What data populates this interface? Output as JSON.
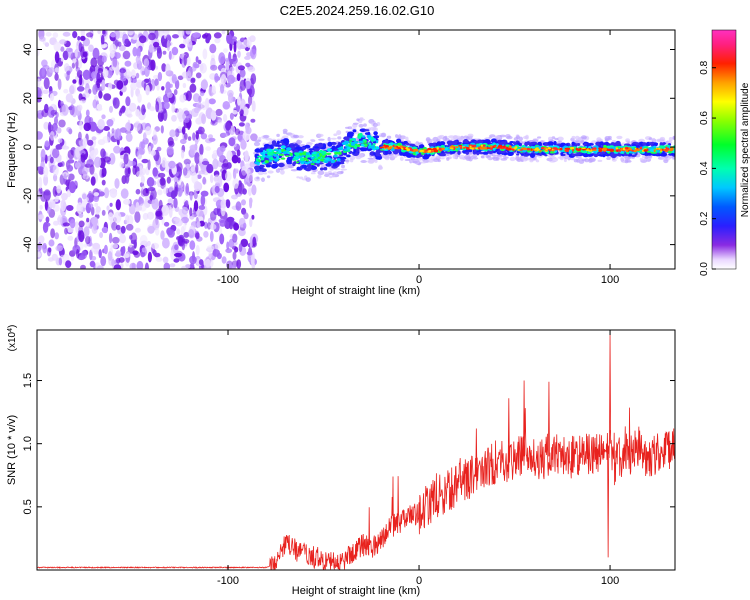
{
  "figure": {
    "title": "C2E5.2024.259.16.02.G10"
  },
  "chart_data": [
    {
      "type": "heatmap",
      "xlabel": "Height of straight line (km)",
      "ylabel": "Frequency (Hz)",
      "xlim": [
        -200,
        134
      ],
      "ylim": [
        -50,
        48
      ],
      "xticks": [
        {
          "value": -100,
          "label": "-100"
        },
        {
          "value": 0,
          "label": "0"
        },
        {
          "value": 100,
          "label": "100"
        }
      ],
      "yticks": [
        {
          "value": -40,
          "label": "-40"
        },
        {
          "value": -20,
          "label": "-20"
        },
        {
          "value": 0,
          "label": "0"
        },
        {
          "value": 20,
          "label": "20"
        },
        {
          "value": 40,
          "label": "40"
        }
      ],
      "signal_trace": {
        "x": [
          -86,
          -80,
          -70,
          -60,
          -50,
          -42,
          -36,
          -30,
          -25,
          -20,
          -10,
          0,
          10,
          20,
          40,
          60,
          80,
          100,
          120,
          134
        ],
        "frequency": [
          -6,
          -4,
          -2,
          -5,
          -4,
          -3,
          1,
          3,
          2,
          0,
          0,
          -2,
          -1,
          0,
          0,
          -1,
          -1,
          -1,
          -1,
          -1
        ]
      },
      "noise_region_x": [
        -200,
        -86
      ],
      "colorbar": {
        "label": "Normalized spectral amplitude",
        "range": [
          0,
          0.95
        ],
        "ticks": [
          {
            "value": 0.0,
            "label": "0.0"
          },
          {
            "value": 0.2,
            "label": "0.2"
          },
          {
            "value": 0.4,
            "label": "0.4"
          },
          {
            "value": 0.6,
            "label": "0.6"
          },
          {
            "value": 0.8,
            "label": "0.8"
          }
        ]
      }
    },
    {
      "type": "line",
      "xlabel": "Height of straight line (km)",
      "ylabel": "SNR (10 * v/v)",
      "scale_note": "(x10",
      "scale_exp": "4",
      "scale_close": ")",
      "xlim": [
        -200,
        134
      ],
      "ylim": [
        0,
        1.9
      ],
      "xticks": [
        {
          "value": -100,
          "label": "-100"
        },
        {
          "value": 0,
          "label": "0"
        },
        {
          "value": 100,
          "label": "100"
        }
      ],
      "yticks": [
        {
          "value": 0.5,
          "label": "0.5"
        },
        {
          "value": 1.0,
          "label": "1.0"
        },
        {
          "value": 1.5,
          "label": "1.5"
        }
      ],
      "line_color": "#e8221e",
      "series": [
        {
          "x": [
            -200,
            -180,
            -160,
            -140,
            -120,
            -100,
            -90,
            -80,
            -76,
            -72,
            -68,
            -64,
            -60,
            -55,
            -50,
            -45,
            -40,
            -35,
            -30,
            -25,
            -20,
            -15,
            -10,
            -5,
            0,
            5,
            10,
            15,
            20,
            25,
            30,
            35,
            40,
            45,
            50,
            55,
            60,
            65,
            70,
            75,
            80,
            85,
            90,
            95,
            98,
            100,
            102,
            105,
            110,
            115,
            120,
            125,
            130,
            134
          ],
          "values": [
            0.02,
            0.02,
            0.02,
            0.02,
            0.02,
            0.02,
            0.02,
            0.02,
            0.04,
            0.17,
            0.2,
            0.15,
            0.12,
            0.1,
            0.08,
            0.05,
            0.06,
            0.14,
            0.2,
            0.18,
            0.24,
            0.34,
            0.38,
            0.42,
            0.45,
            0.52,
            0.58,
            0.62,
            0.68,
            0.72,
            0.76,
            0.8,
            0.84,
            0.86,
            0.88,
            0.9,
            0.88,
            0.87,
            0.92,
            0.9,
            0.89,
            0.93,
            0.9,
            0.92,
            0.96,
            1.0,
            0.8,
            0.9,
            0.92,
            0.95,
            0.9,
            0.92,
            0.95,
            0.96
          ]
        }
      ],
      "peaks": [
        {
          "x": 100,
          "y": 1.86
        },
        {
          "x": 99,
          "y": 0.1
        },
        {
          "x": 68,
          "y": 1.49
        },
        {
          "x": 55,
          "y": 1.5
        },
        {
          "x": 47,
          "y": 1.36
        },
        {
          "x": 30,
          "y": 1.12
        }
      ]
    }
  ]
}
